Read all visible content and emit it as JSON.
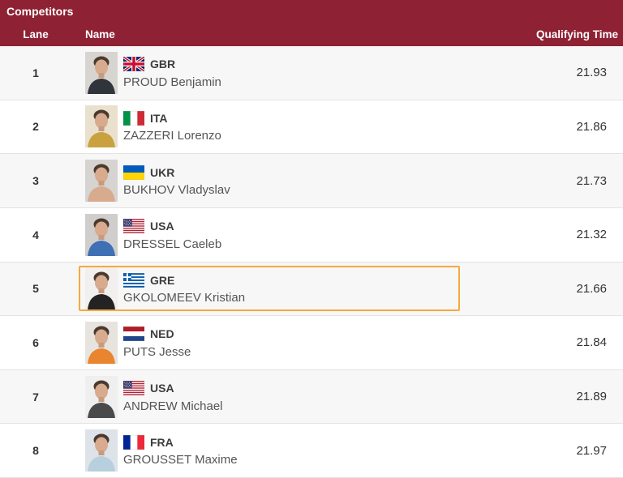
{
  "title": "Competitors",
  "columns": {
    "lane": "Lane",
    "name": "Name",
    "time": "Qualifying Time"
  },
  "colors": {
    "header_bg": "#8E2133",
    "row_alt_bg": "#f7f7f7",
    "row_bg": "#ffffff",
    "focus_border": "#F5A93D",
    "text_dark": "#333333",
    "text_name": "#555555",
    "row_divider": "#e3e3e3"
  },
  "rows": [
    {
      "lane": "1",
      "country": "GBR",
      "flag": "gbr",
      "name": "PROUD Benjamin",
      "time": "21.93",
      "highlighted": false,
      "photo": {
        "bg": "#d8d4d0",
        "shirt": "#30343b"
      }
    },
    {
      "lane": "2",
      "country": "ITA",
      "flag": "ita",
      "name": "ZAZZERI Lorenzo",
      "time": "21.86",
      "highlighted": false,
      "photo": {
        "bg": "#e9e1ce",
        "shirt": "#c9a23f"
      }
    },
    {
      "lane": "3",
      "country": "UKR",
      "flag": "ukr",
      "name": "BUKHOV Vladyslav",
      "time": "21.73",
      "highlighted": false,
      "photo": {
        "bg": "#d6d3d0",
        "shirt": "#d8ab8e"
      }
    },
    {
      "lane": "4",
      "country": "USA",
      "flag": "usa",
      "name": "DRESSEL Caeleb",
      "time": "21.32",
      "highlighted": false,
      "photo": {
        "bg": "#cfcecd",
        "shirt": "#3f6fb5"
      }
    },
    {
      "lane": "5",
      "country": "GRE",
      "flag": "gre",
      "name": "GKOLOMEEV Kristian",
      "time": "21.66",
      "highlighted": true,
      "photo": {
        "bg": "#f2f0ee",
        "shirt": "#232323"
      }
    },
    {
      "lane": "6",
      "country": "NED",
      "flag": "ned",
      "name": "PUTS Jesse",
      "time": "21.84",
      "highlighted": false,
      "photo": {
        "bg": "#e7e3de",
        "shirt": "#e8852e"
      }
    },
    {
      "lane": "7",
      "country": "USA",
      "flag": "usa",
      "name": "ANDREW Michael",
      "time": "21.89",
      "highlighted": false,
      "photo": {
        "bg": "#efefef",
        "shirt": "#4a4a4a"
      }
    },
    {
      "lane": "8",
      "country": "FRA",
      "flag": "fra",
      "name": "GROUSSET Maxime",
      "time": "21.97",
      "highlighted": false,
      "photo": {
        "bg": "#dde3e8",
        "shirt": "#b8cfdd"
      }
    }
  ]
}
